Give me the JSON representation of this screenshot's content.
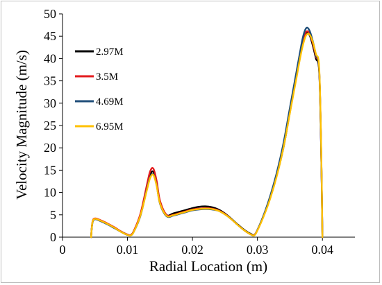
{
  "chart_data": {
    "type": "line",
    "title": "",
    "xlabel": "Radial Location (m)",
    "ylabel": "Velocity Magnitude (m/s)",
    "xlim": [
      0,
      0.045
    ],
    "ylim": [
      0,
      50
    ],
    "xticks": [
      0,
      0.01,
      0.02,
      0.03,
      0.04
    ],
    "xtick_labels": [
      "0",
      "0.01",
      "0.02",
      "0.03",
      "0.04"
    ],
    "yticks": [
      0,
      5,
      10,
      15,
      20,
      25,
      30,
      35,
      40,
      45,
      50
    ],
    "ytick_labels": [
      "0",
      "5",
      "10",
      "15",
      "20",
      "25",
      "30",
      "35",
      "40",
      "45",
      "50"
    ],
    "grid": false,
    "legend_position": "top-left",
    "series": [
      {
        "name": "2.97M",
        "color": "#000000",
        "x": [
          0.0044,
          0.0046,
          0.005,
          0.006,
          0.007,
          0.008,
          0.009,
          0.01,
          0.0105,
          0.011,
          0.012,
          0.013,
          0.0135,
          0.014,
          0.0145,
          0.015,
          0.016,
          0.017,
          0.018,
          0.019,
          0.02,
          0.021,
          0.022,
          0.023,
          0.024,
          0.025,
          0.026,
          0.027,
          0.028,
          0.029,
          0.0295,
          0.03,
          0.031,
          0.032,
          0.033,
          0.034,
          0.035,
          0.036,
          0.0365,
          0.037,
          0.0375,
          0.038,
          0.0385,
          0.039,
          0.0395,
          0.0398,
          0.04
        ],
        "y": [
          0,
          3.2,
          4.1,
          3.6,
          2.9,
          2.1,
          1.2,
          0.5,
          0.5,
          1.4,
          5,
          11,
          14,
          14.6,
          12,
          8,
          5,
          5.3,
          5.7,
          6.1,
          6.5,
          6.8,
          6.9,
          6.7,
          6.2,
          5.3,
          4.1,
          2.8,
          1.6,
          0.7,
          0.5,
          1.6,
          5,
          9,
          14,
          20,
          28,
          36,
          40,
          43.5,
          45.6,
          45.3,
          43,
          40,
          37,
          20,
          0
        ]
      },
      {
        "name": "3.5M",
        "color": "#e31a1c",
        "x": [
          0.0044,
          0.0046,
          0.005,
          0.006,
          0.007,
          0.008,
          0.009,
          0.01,
          0.0105,
          0.011,
          0.012,
          0.013,
          0.0135,
          0.014,
          0.0145,
          0.015,
          0.016,
          0.017,
          0.018,
          0.019,
          0.02,
          0.021,
          0.022,
          0.023,
          0.024,
          0.025,
          0.026,
          0.027,
          0.028,
          0.029,
          0.0295,
          0.03,
          0.031,
          0.032,
          0.033,
          0.034,
          0.035,
          0.036,
          0.0365,
          0.037,
          0.0375,
          0.038,
          0.0385,
          0.039,
          0.0395,
          0.0398,
          0.04
        ],
        "y": [
          0,
          3.3,
          4.2,
          3.7,
          3.0,
          2.2,
          1.3,
          0.6,
          0.5,
          1.5,
          5.3,
          11.8,
          14.8,
          15.3,
          12.5,
          8.2,
          5,
          5.0,
          5.4,
          5.8,
          6.2,
          6.4,
          6.5,
          6.4,
          6.0,
          5.2,
          4.0,
          2.7,
          1.5,
          0.6,
          0.5,
          1.6,
          5,
          9.2,
          14.3,
          20.5,
          28.5,
          36.5,
          40.5,
          44,
          46,
          45.6,
          43.5,
          40.5,
          37.5,
          20,
          0
        ]
      },
      {
        "name": "4.69M",
        "color": "#1f4e79",
        "x": [
          0.0044,
          0.0046,
          0.005,
          0.006,
          0.007,
          0.008,
          0.009,
          0.01,
          0.0105,
          0.011,
          0.012,
          0.013,
          0.0135,
          0.014,
          0.0145,
          0.015,
          0.016,
          0.017,
          0.018,
          0.019,
          0.02,
          0.021,
          0.022,
          0.023,
          0.024,
          0.025,
          0.026,
          0.027,
          0.028,
          0.029,
          0.0295,
          0.03,
          0.031,
          0.032,
          0.033,
          0.034,
          0.035,
          0.036,
          0.0365,
          0.037,
          0.0375,
          0.038,
          0.0385,
          0.039,
          0.0395,
          0.0398,
          0.04
        ],
        "y": [
          0,
          3.1,
          4.0,
          3.5,
          2.8,
          2.0,
          1.2,
          0.5,
          0.4,
          1.3,
          4.8,
          10.8,
          13.5,
          14.0,
          11.5,
          7.5,
          4.7,
          4.8,
          5.2,
          5.6,
          6.0,
          6.2,
          6.3,
          6.2,
          5.9,
          5.1,
          4.0,
          2.7,
          1.5,
          0.6,
          0.4,
          1.6,
          5.1,
          9.4,
          14.6,
          21,
          29,
          37,
          41,
          44.8,
          46.8,
          46.3,
          44,
          40.8,
          37.5,
          20,
          0
        ]
      },
      {
        "name": "6.95M",
        "color": "#ffc000",
        "x": [
          0.0044,
          0.0046,
          0.005,
          0.006,
          0.007,
          0.008,
          0.009,
          0.01,
          0.0105,
          0.011,
          0.012,
          0.013,
          0.0135,
          0.014,
          0.0145,
          0.015,
          0.016,
          0.017,
          0.018,
          0.019,
          0.02,
          0.021,
          0.022,
          0.023,
          0.024,
          0.025,
          0.026,
          0.027,
          0.028,
          0.029,
          0.0295,
          0.03,
          0.031,
          0.032,
          0.033,
          0.034,
          0.035,
          0.036,
          0.0365,
          0.037,
          0.0375,
          0.038,
          0.0385,
          0.039,
          0.0395,
          0.0398,
          0.04
        ],
        "y": [
          0,
          3.2,
          4.1,
          3.6,
          2.9,
          2.1,
          1.2,
          0.5,
          0.4,
          1.3,
          4.9,
          10.6,
          13.3,
          13.9,
          11.4,
          7.6,
          4.8,
          4.9,
          5.3,
          5.7,
          6.1,
          6.3,
          6.4,
          6.3,
          5.9,
          5.1,
          4.0,
          2.7,
          1.5,
          0.6,
          0.4,
          1.5,
          4.8,
          8.8,
          13.8,
          20,
          27.8,
          35.6,
          39.6,
          43,
          45.2,
          45.4,
          43.8,
          41,
          38,
          21,
          0
        ]
      }
    ]
  }
}
